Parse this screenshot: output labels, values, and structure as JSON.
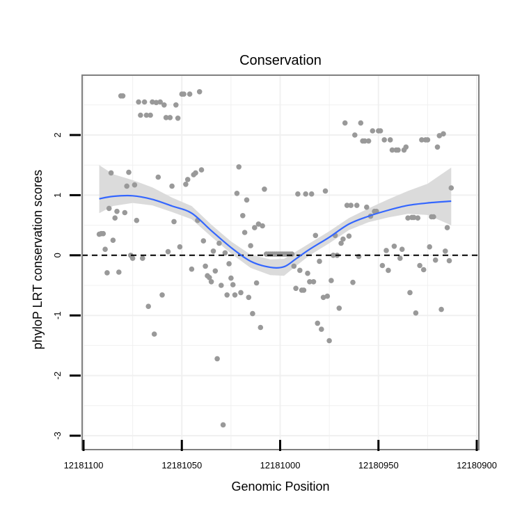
{
  "chart_data": {
    "type": "scatter",
    "title": "Conservation",
    "xlabel": "Genomic Position",
    "ylabel": "phyloP LRT conservation scores",
    "x_reversed": true,
    "xlim": [
      12181100,
      12180900
    ],
    "ylim": [
      -3,
      2.8
    ],
    "x_ticks": [
      12181100,
      12181050,
      12181000,
      12180950,
      12180900
    ],
    "x_tick_labels": [
      "12181100",
      "12181050",
      "12181000",
      "12180950",
      "12180900"
    ],
    "y_ticks": [
      -3,
      -2,
      -1,
      0,
      1,
      2
    ],
    "y_tick_labels": [
      "-3",
      "-2",
      "-1",
      "0",
      "1",
      "2"
    ],
    "grid": true,
    "reference_line": {
      "y": 0,
      "style": "dashed"
    },
    "colors": {
      "points": "#999999",
      "smooth_line": "#3366ff",
      "ribbon": "#d9d9d9",
      "grid": "#f0f0f0",
      "panel_border": "#808080",
      "reference_line": "#000000"
    },
    "points": [
      [
        12181092,
        0.35
      ],
      [
        12181091,
        0.36
      ],
      [
        12181090,
        0.36
      ],
      [
        12181089,
        0.1
      ],
      [
        12181088,
        -0.29
      ],
      [
        12181087,
        0.78
      ],
      [
        12181086,
        1.37
      ],
      [
        12181085,
        0.25
      ],
      [
        12181084,
        0.62
      ],
      [
        12181083,
        0.73
      ],
      [
        12181082,
        -0.28
      ],
      [
        12181081,
        2.65
      ],
      [
        12181080,
        2.65
      ],
      [
        12181079,
        0.71
      ],
      [
        12181078,
        1.15
      ],
      [
        12181077,
        1.38
      ],
      [
        12181076,
        0.0
      ],
      [
        12181075,
        -0.05
      ],
      [
        12181074,
        1.17
      ],
      [
        12181073,
        0.58
      ],
      [
        12181072,
        2.55
      ],
      [
        12181071,
        2.33
      ],
      [
        12181070,
        -0.05
      ],
      [
        12181069,
        2.55
      ],
      [
        12181068,
        2.33
      ],
      [
        12181067,
        -0.85
      ],
      [
        12181066,
        2.33
      ],
      [
        12181065,
        2.55
      ],
      [
        12181064,
        -1.31
      ],
      [
        12181063,
        2.54
      ],
      [
        12181062,
        1.3
      ],
      [
        12181061,
        2.55
      ],
      [
        12181060,
        -0.66
      ],
      [
        12181059,
        2.5
      ],
      [
        12181058,
        2.29
      ],
      [
        12181057,
        0.06
      ],
      [
        12181056,
        2.29
      ],
      [
        12181055,
        1.15
      ],
      [
        12181054,
        0.56
      ],
      [
        12181053,
        2.5
      ],
      [
        12181052,
        2.28
      ],
      [
        12181051,
        0.14
      ],
      [
        12181050,
        2.68
      ],
      [
        12181049,
        2.68
      ],
      [
        12181048,
        1.18
      ],
      [
        12181047,
        1.26
      ],
      [
        12181046,
        2.68
      ],
      [
        12181045,
        -0.23
      ],
      [
        12181044,
        1.34
      ],
      [
        12181043,
        1.37
      ],
      [
        12181042,
        0.58
      ],
      [
        12181041,
        2.72
      ],
      [
        12181040,
        1.42
      ],
      [
        12181039,
        0.24
      ],
      [
        12181038,
        -0.18
      ],
      [
        12181037,
        -0.34
      ],
      [
        12181036,
        -0.37
      ],
      [
        12181035,
        -0.44
      ],
      [
        12181034,
        0.07
      ],
      [
        12181033,
        -0.26
      ],
      [
        12181032,
        -1.72
      ],
      [
        12181031,
        0.2
      ],
      [
        12181030,
        -0.5
      ],
      [
        12181029,
        -2.82
      ],
      [
        12181028,
        0.04
      ],
      [
        12181027,
        -0.66
      ],
      [
        12181026,
        -0.14
      ],
      [
        12181025,
        -0.38
      ],
      [
        12181024,
        -0.49
      ],
      [
        12181023,
        -0.66
      ],
      [
        12181022,
        1.03
      ],
      [
        12181021,
        1.47
      ],
      [
        12181020,
        -0.62
      ],
      [
        12181019,
        0.66
      ],
      [
        12181018,
        0.38
      ],
      [
        12181017,
        0.92
      ],
      [
        12181016,
        -0.7
      ],
      [
        12181015,
        0.16
      ],
      [
        12181014,
        -0.97
      ],
      [
        12181013,
        0.46
      ],
      [
        12181012,
        -0.46
      ],
      [
        12181011,
        0.52
      ],
      [
        12181010,
        -1.2
      ],
      [
        12181009,
        0.49
      ],
      [
        12181008,
        1.1
      ],
      [
        12181007,
        0.02
      ],
      [
        12181006,
        0.02
      ],
      [
        12181005,
        0.02
      ],
      [
        12181004,
        0.02
      ],
      [
        12181003,
        0.02
      ],
      [
        12181002,
        0.02
      ],
      [
        12181001,
        0.02
      ],
      [
        12181000,
        0.02
      ],
      [
        12180999,
        0.02
      ],
      [
        12180998,
        0.02
      ],
      [
        12180997,
        0.02
      ],
      [
        12180996,
        0.02
      ],
      [
        12180995,
        0.02
      ],
      [
        12180994,
        0.02
      ],
      [
        12180993,
        -0.18
      ],
      [
        12180992,
        -0.55
      ],
      [
        12180991,
        1.02
      ],
      [
        12180990,
        -0.25
      ],
      [
        12180989,
        -0.58
      ],
      [
        12180988,
        -0.58
      ],
      [
        12180987,
        1.02
      ],
      [
        12180986,
        -0.3
      ],
      [
        12180985,
        -0.44
      ],
      [
        12180984,
        1.02
      ],
      [
        12180983,
        -0.44
      ],
      [
        12180982,
        0.33
      ],
      [
        12180981,
        -1.13
      ],
      [
        12180980,
        -0.1
      ],
      [
        12180979,
        -1.23
      ],
      [
        12180978,
        -0.7
      ],
      [
        12180977,
        1.07
      ],
      [
        12180976,
        -0.68
      ],
      [
        12180975,
        -1.42
      ],
      [
        12180974,
        -0.42
      ],
      [
        12180973,
        0.0
      ],
      [
        12180972,
        0.33
      ],
      [
        12180971,
        0.0
      ],
      [
        12180970,
        -0.88
      ],
      [
        12180969,
        0.2
      ],
      [
        12180968,
        0.27
      ],
      [
        12180967,
        2.2
      ],
      [
        12180966,
        0.83
      ],
      [
        12180965,
        0.32
      ],
      [
        12180964,
        0.83
      ],
      [
        12180963,
        -0.45
      ],
      [
        12180962,
        2.0
      ],
      [
        12180961,
        0.83
      ],
      [
        12180960,
        -0.02
      ],
      [
        12180959,
        2.2
      ],
      [
        12180958,
        1.9
      ],
      [
        12180957,
        1.9
      ],
      [
        12180956,
        0.8
      ],
      [
        12180955,
        1.9
      ],
      [
        12180954,
        0.65
      ],
      [
        12180953,
        2.07
      ],
      [
        12180952,
        0.73
      ],
      [
        12180951,
        0.73
      ],
      [
        12180950,
        2.07
      ],
      [
        12180949,
        2.07
      ],
      [
        12180948,
        -0.17
      ],
      [
        12180947,
        1.92
      ],
      [
        12180946,
        0.08
      ],
      [
        12180945,
        -0.25
      ],
      [
        12180944,
        1.92
      ],
      [
        12180943,
        1.75
      ],
      [
        12180942,
        0.15
      ],
      [
        12180941,
        1.75
      ],
      [
        12180940,
        1.75
      ],
      [
        12180939,
        -0.05
      ],
      [
        12180938,
        0.1
      ],
      [
        12180937,
        1.75
      ],
      [
        12180936,
        1.8
      ],
      [
        12180935,
        0.62
      ],
      [
        12180934,
        -0.62
      ],
      [
        12180933,
        0.63
      ],
      [
        12180932,
        0.63
      ],
      [
        12180931,
        -0.96
      ],
      [
        12180930,
        0.62
      ],
      [
        12180929,
        -0.17
      ],
      [
        12180928,
        1.92
      ],
      [
        12180927,
        -0.24
      ],
      [
        12180926,
        1.92
      ],
      [
        12180925,
        1.92
      ],
      [
        12180924,
        0.14
      ],
      [
        12180923,
        0.64
      ],
      [
        12180922,
        0.64
      ],
      [
        12180921,
        -0.08
      ],
      [
        12180920,
        1.8
      ],
      [
        12180919,
        1.99
      ],
      [
        12180918,
        -0.9
      ],
      [
        12180917,
        2.02
      ],
      [
        12180916,
        0.07
      ],
      [
        12180915,
        0.46
      ],
      [
        12180914,
        -0.09
      ],
      [
        12180913,
        1.12
      ]
    ],
    "smooth": {
      "x": [
        12181092,
        12181085,
        12181075,
        12181065,
        12181055,
        12181045,
        12181035,
        12181025,
        12181015,
        12181005,
        12180998,
        12180992,
        12180985,
        12180975,
        12180965,
        12180955,
        12180945,
        12180935,
        12180925,
        12180913
      ],
      "y": [
        0.94,
        0.98,
        0.99,
        0.93,
        0.82,
        0.7,
        0.41,
        0.13,
        -0.1,
        -0.2,
        -0.19,
        -0.06,
        0.1,
        0.3,
        0.52,
        0.65,
        0.75,
        0.83,
        0.87,
        0.9
      ],
      "ymin": [
        0.7,
        0.82,
        0.87,
        0.83,
        0.72,
        0.6,
        0.31,
        0.03,
        -0.21,
        -0.33,
        -0.34,
        -0.18,
        0.0,
        0.2,
        0.42,
        0.55,
        0.63,
        0.69,
        0.67,
        0.5
      ],
      "ymax": [
        1.5,
        1.35,
        1.25,
        1.13,
        0.96,
        0.82,
        0.51,
        0.23,
        0.01,
        -0.07,
        -0.06,
        0.06,
        0.2,
        0.4,
        0.62,
        0.78,
        0.93,
        1.07,
        1.19,
        1.46
      ]
    }
  }
}
